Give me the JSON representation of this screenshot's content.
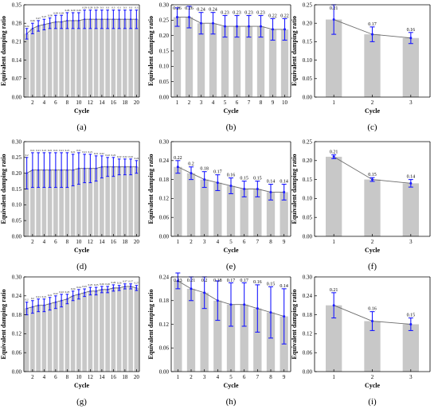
{
  "colors": {
    "bar": "#c8c8c8",
    "error_bar": "#1a1aff",
    "trend_line": "#6b6b6b"
  },
  "chart_data": [
    {
      "panel": "(a)",
      "type": "bar",
      "xlabel": "Cycle",
      "ylabel": "Equivalent damping ratio",
      "categories": [
        1,
        2,
        3,
        4,
        5,
        6,
        7,
        8,
        9,
        10,
        11,
        12,
        13,
        14,
        15,
        16,
        17,
        18,
        19,
        20
      ],
      "xtick_labels": [
        "2",
        "4",
        "6",
        "8",
        "10",
        "12",
        "14",
        "16",
        "18",
        "20"
      ],
      "values": [
        0.24,
        0.26,
        0.27,
        0.275,
        0.28,
        0.285,
        0.285,
        0.29,
        0.29,
        0.29,
        0.295,
        0.295,
        0.295,
        0.295,
        0.295,
        0.295,
        0.295,
        0.295,
        0.295,
        0.295
      ],
      "error": [
        0.02,
        0.02,
        0.02,
        0.02,
        0.02,
        0.025,
        0.025,
        0.03,
        0.03,
        0.03,
        0.035,
        0.035,
        0.035,
        0.035,
        0.035,
        0.035,
        0.035,
        0.035,
        0.035,
        0.035
      ],
      "value_labels": [
        "0.24",
        "0.26",
        "0.27",
        "0.27",
        "0.28",
        "0.28",
        "0.28",
        "0.29",
        "0.29",
        "0.29",
        "0.29",
        "0.29",
        "0.29",
        "0.3",
        "0.3",
        "0.3",
        "0.3",
        "0.3",
        "0.3",
        "0.3"
      ],
      "ylim": [
        0,
        0.35
      ],
      "yticks": [
        "0.00",
        "0.07",
        "0.14",
        "0.21",
        "0.28",
        "0.35"
      ]
    },
    {
      "panel": "(b)",
      "type": "bar",
      "xlabel": "Cycle",
      "ylabel": "Equivalent damping ratio",
      "categories": [
        1,
        2,
        3,
        4,
        5,
        6,
        7,
        8,
        9,
        10
      ],
      "xtick_labels": [
        "1",
        "2",
        "3",
        "4",
        "5",
        "6",
        "7",
        "8",
        "9",
        "10"
      ],
      "values": [
        0.26,
        0.26,
        0.24,
        0.24,
        0.23,
        0.23,
        0.23,
        0.23,
        0.22,
        0.22
      ],
      "error": [
        0.03,
        0.035,
        0.035,
        0.035,
        0.035,
        0.035,
        0.035,
        0.035,
        0.035,
        0.035
      ],
      "value_labels": [
        "0.26",
        "0.26",
        "0.24",
        "0.24",
        "0.23",
        "0.23",
        "0.23",
        "0.23",
        "0.22",
        "0.22"
      ],
      "ylim": [
        0,
        0.3
      ],
      "yticks": [
        "0.00",
        "0.05",
        "0.10",
        "0.15",
        "0.20",
        "0.25",
        "0.30"
      ]
    },
    {
      "panel": "(c)",
      "type": "bar",
      "xlabel": "Cycle",
      "ylabel": "Equivalent damping ratio",
      "categories": [
        1,
        2,
        3
      ],
      "xtick_labels": [
        "1",
        "2",
        "3"
      ],
      "values": [
        0.21,
        0.17,
        0.16
      ],
      "error": [
        0.04,
        0.02,
        0.015
      ],
      "value_labels": [
        "0.21",
        "0.17",
        "0.16"
      ],
      "ylim": [
        0,
        0.25
      ],
      "yticks": [
        "0.00",
        "0.05",
        "0.10",
        "0.15",
        "0.20",
        "0.25"
      ]
    },
    {
      "panel": "(d)",
      "type": "bar",
      "xlabel": "Cycle",
      "ylabel": "Equivalent damping ratio",
      "categories": [
        1,
        2,
        3,
        4,
        5,
        6,
        7,
        8,
        9,
        10,
        11,
        12,
        13,
        14,
        15,
        16,
        17,
        18,
        19,
        20
      ],
      "xtick_labels": [
        "2",
        "4",
        "6",
        "8",
        "10",
        "12",
        "14",
        "16",
        "18",
        "20"
      ],
      "values": [
        0.2,
        0.21,
        0.21,
        0.21,
        0.21,
        0.21,
        0.21,
        0.21,
        0.21,
        0.215,
        0.215,
        0.215,
        0.215,
        0.22,
        0.22,
        0.22,
        0.22,
        0.22,
        0.22,
        0.22
      ],
      "error": [
        0.05,
        0.055,
        0.055,
        0.055,
        0.055,
        0.055,
        0.055,
        0.055,
        0.05,
        0.05,
        0.045,
        0.045,
        0.04,
        0.035,
        0.03,
        0.03,
        0.025,
        0.025,
        0.025,
        0.02
      ],
      "value_labels": [
        "0.2",
        "0.21",
        "0.21",
        "0.21",
        "0.21",
        "0.21",
        "0.21",
        "0.21",
        "0.21",
        "0.21",
        "0.21",
        "0.21",
        "0.21",
        "0.22",
        "0.22",
        "0.22",
        "0.22",
        "0.22",
        "0.22",
        "0.22"
      ],
      "ylim": [
        0,
        0.3
      ],
      "yticks": [
        "0.00",
        "0.05",
        "0.10",
        "0.15",
        "0.20",
        "0.25",
        "0.30"
      ]
    },
    {
      "panel": "(e)",
      "type": "bar",
      "xlabel": "Cycle",
      "ylabel": "Equivalent damping ratio",
      "categories": [
        1,
        2,
        3,
        4,
        5,
        6,
        7,
        8,
        9
      ],
      "xtick_labels": [
        "1",
        "2",
        "3",
        "4",
        "5",
        "6",
        "7",
        "8",
        "9"
      ],
      "values": [
        0.22,
        0.2,
        0.18,
        0.17,
        0.16,
        0.15,
        0.15,
        0.14,
        0.14
      ],
      "error": [
        0.02,
        0.02,
        0.025,
        0.025,
        0.025,
        0.025,
        0.025,
        0.025,
        0.025
      ],
      "value_labels": [
        "0.22",
        "0.2",
        "0.18",
        "0.17",
        "0.16",
        "0.15",
        "0.15",
        "0.14",
        "0.14"
      ],
      "ylim": [
        0,
        0.3
      ],
      "yticks": [
        "0.00",
        "0.06",
        "0.12",
        "0.18",
        "0.24",
        "0.30"
      ]
    },
    {
      "panel": "(f)",
      "type": "bar",
      "xlabel": "Cycle",
      "ylabel": "Equivalent damping ratio",
      "categories": [
        1,
        2,
        3
      ],
      "xtick_labels": [
        "1",
        "2",
        "3"
      ],
      "values": [
        0.21,
        0.15,
        0.14
      ],
      "error": [
        0.005,
        0.005,
        0.01
      ],
      "value_labels": [
        "0.21",
        "0.15",
        "0.14"
      ],
      "ylim": [
        0,
        0.25
      ],
      "yticks": [
        "0.00",
        "0.05",
        "0.10",
        "0.15",
        "0.20",
        "0.25"
      ]
    },
    {
      "panel": "(g)",
      "type": "bar",
      "xlabel": "Cycle",
      "ylabel": "Equivalent damping ratio",
      "categories": [
        1,
        2,
        3,
        4,
        5,
        6,
        7,
        8,
        9,
        10,
        11,
        12,
        13,
        14,
        15,
        16,
        17,
        18,
        19,
        20
      ],
      "xtick_labels": [
        "2",
        "4",
        "6",
        "8",
        "10",
        "12",
        "14",
        "16",
        "18",
        "20"
      ],
      "values": [
        0.2,
        0.205,
        0.21,
        0.21,
        0.215,
        0.22,
        0.225,
        0.23,
        0.24,
        0.245,
        0.25,
        0.255,
        0.255,
        0.26,
        0.26,
        0.265,
        0.265,
        0.27,
        0.27,
        0.265
      ],
      "error": [
        0.02,
        0.02,
        0.02,
        0.02,
        0.02,
        0.02,
        0.02,
        0.015,
        0.015,
        0.015,
        0.012,
        0.012,
        0.012,
        0.01,
        0.01,
        0.01,
        0.008,
        0.008,
        0.008,
        0.008
      ],
      "value_labels": [
        "0.2",
        "0.2",
        "0.21",
        "0.21",
        "0.21",
        "0.22",
        "0.22",
        "0.23",
        "0.24",
        "0.24",
        "0.25",
        "0.25",
        "0.25",
        "0.26",
        "0.26",
        "0.26",
        "0.26",
        "0.27",
        "0.27",
        "0.27"
      ],
      "ylim": [
        0,
        0.3
      ],
      "yticks": [
        "0.00",
        "0.06",
        "0.12",
        "0.18",
        "0.24",
        "0.30"
      ]
    },
    {
      "panel": "(h)",
      "type": "bar",
      "xlabel": "Cycle",
      "ylabel": "Equivalent damping ratio",
      "categories": [
        1,
        2,
        3,
        4,
        5,
        6,
        7,
        8,
        9
      ],
      "xtick_labels": [
        "1",
        "2",
        "3",
        "4",
        "5",
        "6",
        "7",
        "8",
        "9"
      ],
      "values": [
        0.23,
        0.21,
        0.2,
        0.18,
        0.17,
        0.17,
        0.16,
        0.15,
        0.14
      ],
      "error": [
        0.02,
        0.03,
        0.04,
        0.05,
        0.055,
        0.055,
        0.06,
        0.065,
        0.07
      ],
      "value_labels": [
        "0.23",
        "0.21",
        "0.2",
        "0.18",
        "0.17",
        "0.17",
        "0.16",
        "0.15",
        "0.14"
      ],
      "ylim": [
        0,
        0.24
      ],
      "yticks": [
        "0.00",
        "0.06",
        "0.12",
        "0.18",
        "0.24"
      ]
    },
    {
      "panel": "(i)",
      "type": "bar",
      "xlabel": "Cycle",
      "ylabel": "Equivalent damping ratio",
      "categories": [
        1,
        2,
        3
      ],
      "xtick_labels": [
        "1",
        "2",
        "3"
      ],
      "values": [
        0.21,
        0.16,
        0.15
      ],
      "error": [
        0.04,
        0.03,
        0.02
      ],
      "value_labels": [
        "0.21",
        "0.16",
        "0.15"
      ],
      "ylim": [
        0,
        0.3
      ],
      "yticks": [
        "0.00",
        "0.06",
        "0.12",
        "0.18",
        "0.24",
        "0.30"
      ]
    }
  ]
}
